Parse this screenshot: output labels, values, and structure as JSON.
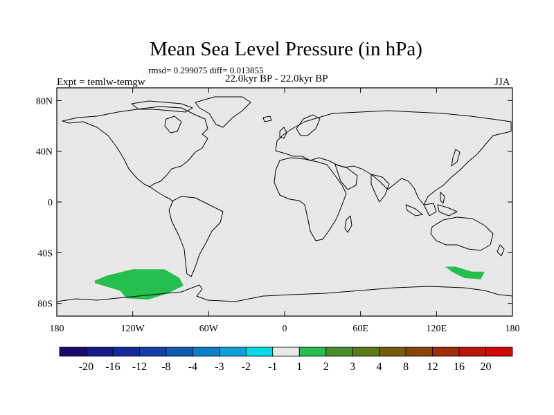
{
  "title": "Mean Sea Level Pressure (in hPa)",
  "stats_line": "rmsd= 0.299075 diff= 0.013855",
  "period_line": "22.0kyr BP - 22.0kyr BP",
  "experiment_line": "Expt = temlw-temgw",
  "season": "JJA",
  "lat_ticks": [
    "80N",
    "40N",
    "0",
    "40S",
    "80S"
  ],
  "lon_ticks": [
    "180",
    "120W",
    "60W",
    "0",
    "60E",
    "120E",
    "180"
  ],
  "colorbar": {
    "labels": [
      "-20",
      "-16",
      "-12",
      "-8",
      "-4",
      "-3",
      "-2",
      "-1",
      "1",
      "2",
      "3",
      "4",
      "8",
      "12",
      "16",
      "20"
    ],
    "colors": [
      "#1a0a6e",
      "#141a8a",
      "#12289c",
      "#113fa7",
      "#0f5ab5",
      "#0d7fc8",
      "#0aa2d8",
      "#05dbe8",
      "#e8e8e8",
      "#26bf4f",
      "#4a8c2a",
      "#5b7a18",
      "#765c08",
      "#8a4406",
      "#a02c06",
      "#b81806",
      "#cf0808"
    ]
  },
  "chart_data": {
    "type": "heatmap",
    "title": "Mean Sea Level Pressure (in hPa)",
    "variable": "Mean Sea Level Pressure",
    "units": "hPa",
    "x_axis": {
      "ticks": [
        "180",
        "120W",
        "60W",
        "0",
        "60E",
        "120E",
        "180"
      ],
      "range": [
        -180,
        180
      ]
    },
    "y_axis": {
      "ticks": [
        "80N",
        "40N",
        "0",
        "40S",
        "80S"
      ],
      "range": [
        -90,
        90
      ]
    },
    "background_class": "-1 to 1",
    "anomaly_regions": [
      {
        "class": "1 to 2",
        "color": "#26bf4f",
        "outline": [
          [
            -150,
            -62
          ],
          [
            -140,
            -58
          ],
          [
            -120,
            -53
          ],
          [
            -95,
            -53
          ],
          [
            -83,
            -60
          ],
          [
            -80,
            -66
          ],
          [
            -92,
            -72
          ],
          [
            -108,
            -77
          ],
          [
            -125,
            -76
          ],
          [
            -130,
            -70
          ],
          [
            -150,
            -64
          ]
        ]
      },
      {
        "class": "1 to 2",
        "color": "#26bf4f",
        "outline": [
          [
            127,
            -51
          ],
          [
            135,
            -51
          ],
          [
            148,
            -55
          ],
          [
            158,
            -55
          ],
          [
            155,
            -61
          ],
          [
            142,
            -60
          ],
          [
            132,
            -55
          ]
        ]
      }
    ]
  }
}
